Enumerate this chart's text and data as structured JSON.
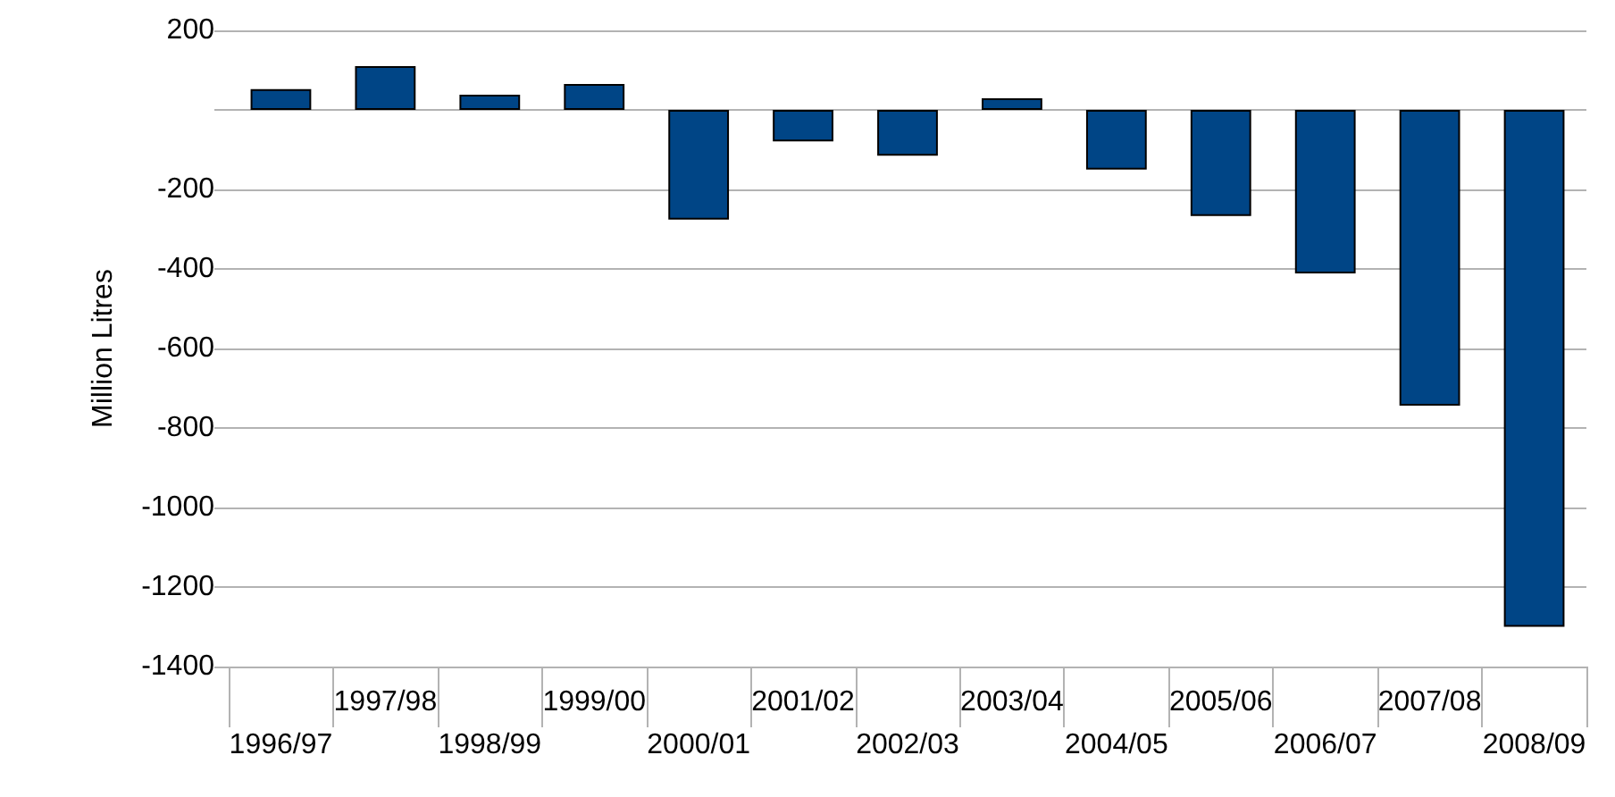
{
  "chart_data": {
    "type": "bar",
    "ylabel": "Million Litres",
    "categories": [
      "1996/97",
      "1997/98",
      "1998/99",
      "1999/00",
      "2000/01",
      "2001/02",
      "2002/03",
      "2003/04",
      "2004/05",
      "2005/06",
      "2006/07",
      "2007/08",
      "2008/09"
    ],
    "series": [
      {
        "color": "#004586",
        "values": [
          52,
          110,
          38,
          65,
          -276,
          -79,
          -115,
          29,
          -150,
          -267,
          -411,
          -744,
          -1300
        ]
      }
    ],
    "ylim": [
      -1400,
      200
    ],
    "yticks": [
      -1400,
      -1200,
      -1000,
      -800,
      -600,
      -400,
      -200,
      {
        "value": 0,
        "label": null
      },
      200
    ],
    "grid": "y"
  }
}
